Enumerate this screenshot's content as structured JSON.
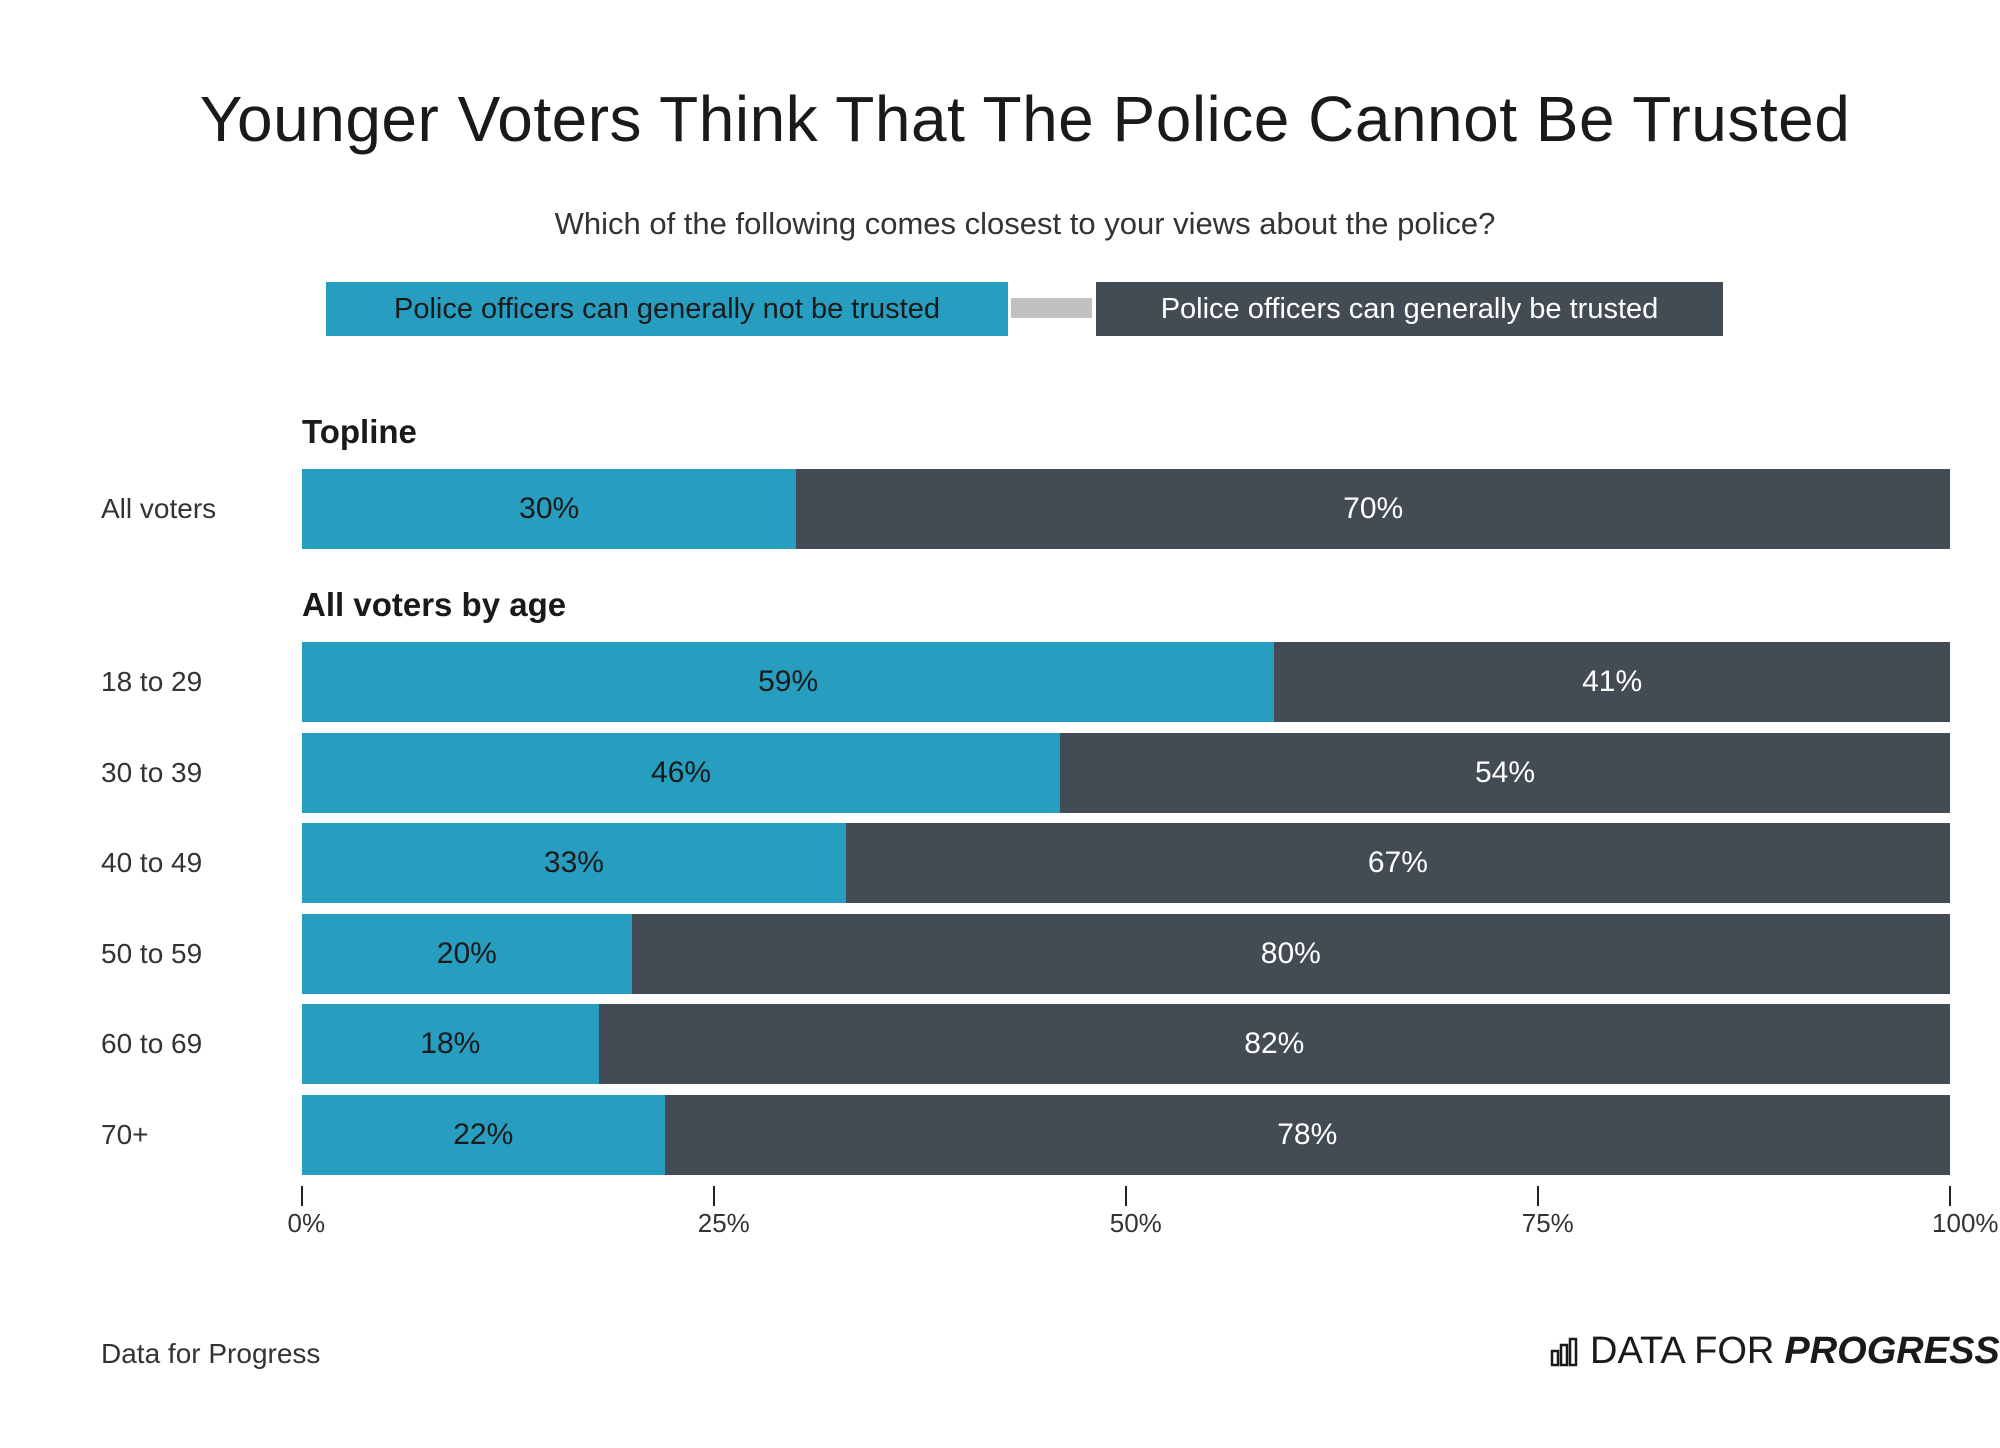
{
  "title": "Younger Voters Think That The Police Cannot Be Trusted",
  "subtitle": "Which of the following comes closest to your views about the police?",
  "source": "Data for Progress",
  "logo": {
    "icon": "bar-chart-icon",
    "text_light": "DATA FOR",
    "text_bold": "PROGRESS"
  },
  "colors": {
    "not_trusted": "#279dc0",
    "trusted": "#434b55"
  },
  "chart_data": {
    "type": "bar",
    "orientation": "horizontal",
    "stacked": true,
    "title": "Younger Voters Think That The Police Cannot Be Trusted",
    "subtitle": "Which of the following comes closest to your views about the police?",
    "legend": [
      "Police officers can generally not be trusted",
      "Police officers can generally be trusted"
    ],
    "legend_placement": "top",
    "xlim": [
      0,
      100
    ],
    "xticks": [
      "0%",
      "25%",
      "50%",
      "75%",
      "100%"
    ],
    "xtick_values": [
      0,
      25,
      50,
      75,
      100
    ],
    "grid": false,
    "groups": [
      {
        "label": "Topline",
        "rows": [
          {
            "category": "All voters",
            "values": [
              30,
              70
            ],
            "labels": [
              "30%",
              "70%"
            ]
          }
        ]
      },
      {
        "label": "All voters by age",
        "rows": [
          {
            "category": "18 to 29",
            "values": [
              59,
              41
            ],
            "labels": [
              "59%",
              "41%"
            ]
          },
          {
            "category": "30 to 39",
            "values": [
              46,
              54
            ],
            "labels": [
              "46%",
              "54%"
            ]
          },
          {
            "category": "40 to 49",
            "values": [
              33,
              67
            ],
            "labels": [
              "33%",
              "67%"
            ]
          },
          {
            "category": "50 to 59",
            "values": [
              20,
              80
            ],
            "labels": [
              "20%",
              "80%"
            ]
          },
          {
            "category": "60 to 69",
            "values": [
              18,
              82
            ],
            "labels": [
              "18%",
              "82%"
            ]
          },
          {
            "category": "70+",
            "values": [
              22,
              78
            ],
            "labels": [
              "22%",
              "78%"
            ]
          }
        ]
      }
    ]
  }
}
